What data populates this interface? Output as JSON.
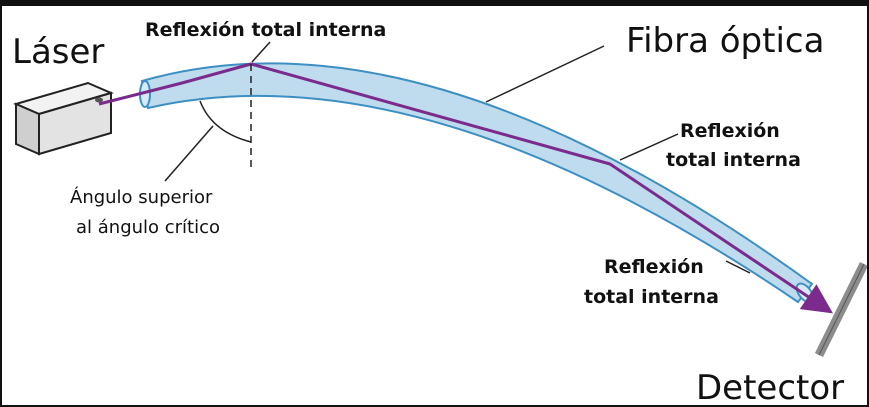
{
  "labels": {
    "laser": "Láser",
    "fiber": "Fibra óptica",
    "detector": "Detector",
    "reflection_top": "Reflexión total interna",
    "reflection_mid_line1": "Reflexión",
    "reflection_mid_line2": "total interna",
    "reflection_low_line1": "Reflexión",
    "reflection_low_line2": "total interna",
    "angle_line1": "Ángulo superior",
    "angle_line2": "al ángulo crítico"
  },
  "colors": {
    "fiber_fill": "#bfdcef",
    "fiber_stroke": "#3d8fc2",
    "beam": "#7a2b8c",
    "detector": "#9a9a9a",
    "laser_body": "#d9d9d9"
  }
}
